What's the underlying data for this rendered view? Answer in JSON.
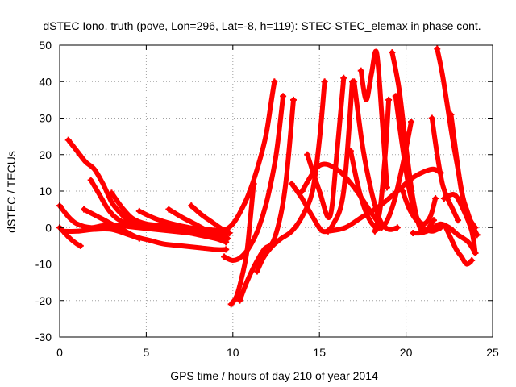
{
  "chart_data": {
    "type": "scatter",
    "title": "dSTEC Iono. truth (pove, Lon=296, Lat=-8, h=119): STEC-STEC_elemax in phase cont.",
    "xlabel": "GPS time / hours of day 210 of year 2014",
    "ylabel": "dSTEC  / TECUs",
    "xlim": [
      0,
      25
    ],
    "ylim": [
      -30,
      50
    ],
    "xticks": [
      0,
      5,
      10,
      15,
      20,
      25
    ],
    "yticks": [
      -30,
      -20,
      -10,
      0,
      10,
      20,
      30,
      40,
      50
    ],
    "grid": true,
    "marker": "+",
    "color": "#ff0000",
    "series": [
      {
        "x": [
          0.0,
          0.3,
          0.6,
          1.0,
          1.2
        ],
        "y": [
          0,
          -1.5,
          -3,
          -4.5,
          -5
        ]
      },
      {
        "x": [
          0.0,
          0.5,
          1.0,
          1.8,
          2.5,
          3.5,
          4.5,
          5.5,
          6.5,
          7.5,
          8.5,
          9.6
        ],
        "y": [
          6,
          3,
          1,
          0,
          0.5,
          0.5,
          0,
          -0.5,
          -1,
          -1.5,
          -2,
          -2.5
        ]
      },
      {
        "x": [
          0.5,
          1.0,
          1.5,
          2.0,
          2.5,
          3.0,
          3.5,
          4.0,
          5.0,
          6.0,
          7.0,
          8.0,
          9.0,
          9.6
        ],
        "y": [
          24,
          21,
          18,
          16,
          12,
          7,
          4,
          2,
          0.5,
          -0.5,
          -1,
          -2,
          -3,
          -4
        ]
      },
      {
        "x": [
          0.2,
          1.0,
          2.0,
          3.0,
          4.0,
          4.6
        ],
        "y": [
          -1,
          -1,
          -0.5,
          -0.5,
          -2,
          -3
        ]
      },
      {
        "x": [
          1.4,
          2.0,
          2.8,
          3.6,
          4.4,
          5.2,
          6.0,
          7.0,
          8.0,
          9.0,
          9.6
        ],
        "y": [
          5,
          3.5,
          1.5,
          -0.5,
          -2.5,
          -3.5,
          -4.5,
          -5,
          -5.5,
          -6,
          -6
        ]
      },
      {
        "x": [
          1.8,
          2.3,
          2.8,
          3.3,
          4.0,
          5.0,
          6.0,
          7.0,
          8.0,
          9.0,
          9.5
        ],
        "y": [
          13,
          9,
          5,
          2.5,
          1,
          0.5,
          0,
          -0.5,
          -1,
          -1.5,
          -2
        ]
      },
      {
        "x": [
          3.0,
          3.6,
          4.2,
          5.0,
          6.0,
          7.0,
          8.0,
          9.0,
          9.6
        ],
        "y": [
          9.5,
          5.5,
          2.5,
          1,
          0.5,
          0,
          -0.5,
          -1,
          -1.5
        ]
      },
      {
        "x": [
          4.6,
          5.5,
          6.5,
          7.5,
          8.5,
          9.6
        ],
        "y": [
          4.5,
          2.5,
          1,
          0,
          -0.5,
          -1
        ]
      },
      {
        "x": [
          6.3,
          7.0,
          7.8,
          8.6,
          9.4,
          9.7
        ],
        "y": [
          5,
          3,
          1,
          -1,
          -2.5,
          -3
        ]
      },
      {
        "x": [
          7.6,
          8.2,
          8.8,
          9.4,
          9.8
        ],
        "y": [
          6,
          3.5,
          1.5,
          -0.5,
          -1.5
        ]
      },
      {
        "x": [
          9.3,
          9.6,
          10.0,
          10.4,
          10.9,
          11.4,
          11.9,
          12.2,
          12.4
        ],
        "y": [
          -0.5,
          -0.5,
          1,
          4,
          9,
          16,
          25,
          34,
          40
        ]
      },
      {
        "x": [
          9.5,
          10.0,
          10.5,
          11.0,
          11.5,
          12.0,
          12.5,
          12.9
        ],
        "y": [
          -8,
          -9,
          -8,
          -5,
          0,
          8,
          20,
          36
        ]
      },
      {
        "x": [
          9.9,
          10.2,
          10.5,
          10.8,
          11.0,
          11.2
        ],
        "y": [
          -21,
          -19,
          -14,
          -7,
          2,
          12
        ]
      },
      {
        "x": [
          10.4,
          10.8,
          11.3,
          11.8,
          12.4,
          13.0,
          13.5
        ],
        "y": [
          -20,
          -15,
          -10,
          -6,
          -3,
          10,
          35
        ]
      },
      {
        "x": [
          11.4,
          11.8,
          12.3,
          12.8,
          13.4,
          14.0,
          14.6,
          15.0,
          15.3
        ],
        "y": [
          -12,
          -8,
          -5,
          -3,
          -1,
          3,
          10,
          24,
          40
        ]
      },
      {
        "x": [
          13.4,
          14.0,
          14.6,
          15.2,
          15.8,
          16.4,
          16.9
        ],
        "y": [
          12,
          8,
          3,
          -1,
          1,
          10,
          40
        ]
      },
      {
        "x": [
          14.3,
          15.0,
          15.6,
          16.0,
          16.4
        ],
        "y": [
          20,
          10,
          3,
          20,
          41
        ]
      },
      {
        "x": [
          14.0,
          15.0,
          16.0,
          17.0,
          18.0,
          18.6
        ],
        "y": [
          10,
          17,
          16,
          11,
          4,
          0
        ]
      },
      {
        "x": [
          15.5,
          16.5,
          17.5,
          18.5,
          19.5,
          20.5,
          21.5,
          22.0
        ],
        "y": [
          -1,
          0,
          3,
          6,
          10,
          14,
          16,
          15
        ]
      },
      {
        "x": [
          17.0,
          17.5,
          18.0,
          18.5,
          19.0,
          19.5
        ],
        "y": [
          40,
          22,
          10,
          2,
          -0.5,
          0
        ]
      },
      {
        "x": [
          16.8,
          17.3,
          17.8,
          18.3,
          18.8,
          19.3,
          19.8,
          20.3
        ],
        "y": [
          21,
          10,
          3,
          0,
          1,
          7,
          17,
          29
        ]
      },
      {
        "x": [
          17.4,
          17.7,
          18.0,
          18.3,
          18.6,
          18.9
        ],
        "y": [
          43,
          35,
          42,
          48,
          31,
          11
        ]
      },
      {
        "x": [
          18.2,
          18.5,
          18.8,
          19.0
        ],
        "y": [
          -1,
          5,
          20,
          35
        ]
      },
      {
        "x": [
          19.2,
          19.6,
          20.0,
          20.4,
          20.8,
          21.2,
          21.6
        ],
        "y": [
          48,
          38,
          22,
          8,
          0,
          -0.5,
          2
        ]
      },
      {
        "x": [
          19.4,
          19.8,
          20.2,
          20.6,
          21.0,
          21.4,
          21.7
        ],
        "y": [
          36,
          22,
          10,
          3,
          1,
          3,
          8
        ]
      },
      {
        "x": [
          19.8,
          20.2,
          20.6,
          21.0,
          21.5,
          22.0
        ],
        "y": [
          10,
          5,
          2,
          0,
          -1,
          0
        ]
      },
      {
        "x": [
          20.4,
          20.8,
          21.2,
          21.6,
          22.0,
          22.5,
          23.0,
          23.6,
          24.0
        ],
        "y": [
          -1.5,
          -1.5,
          -1,
          0,
          1,
          0,
          -2,
          -4,
          -7
        ]
      },
      {
        "x": [
          21.5,
          21.8,
          22.1,
          22.4,
          22.7,
          23.0
        ],
        "y": [
          30,
          20,
          12,
          8,
          5,
          2
        ]
      },
      {
        "x": [
          21.8,
          22.1,
          22.4,
          22.7,
          23.0,
          23.3,
          23.6,
          24.0
        ],
        "y": [
          49,
          42,
          33,
          24,
          16,
          8,
          3,
          0
        ]
      },
      {
        "x": [
          22.3,
          22.6,
          22.9,
          23.2,
          23.5,
          23.8
        ],
        "y": [
          0,
          -3,
          -6,
          -8,
          -10,
          -9
        ]
      },
      {
        "x": [
          22.6,
          22.9,
          23.2,
          23.5,
          23.8,
          24.1
        ],
        "y": [
          31,
          20,
          10,
          5,
          1,
          -2
        ]
      },
      {
        "x": [
          22.2,
          22.8,
          23.3,
          23.8,
          24.0
        ],
        "y": [
          8,
          9,
          5,
          -1,
          -7
        ]
      }
    ]
  }
}
